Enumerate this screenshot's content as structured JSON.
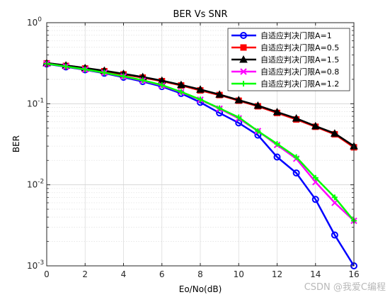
{
  "chart_data": {
    "type": "line",
    "title": "BER Vs SNR",
    "xlabel": "Eo/No(dB)",
    "ylabel": "BER",
    "xlim": [
      0,
      16
    ],
    "ylim": [
      0.001,
      1
    ],
    "yscale": "log",
    "grid": true,
    "minor_grid": true,
    "legend_position": "top-right",
    "x_ticks": [
      "0",
      "2",
      "4",
      "6",
      "8",
      "10",
      "12",
      "14",
      "16"
    ],
    "y_ticks": [
      {
        "base": "10",
        "exp": "0",
        "value": 1
      },
      {
        "base": "10",
        "exp": "-1",
        "value": 0.1
      },
      {
        "base": "10",
        "exp": "-2",
        "value": 0.01
      },
      {
        "base": "10",
        "exp": "-3",
        "value": 0.001
      }
    ],
    "x": [
      0,
      1,
      2,
      3,
      4,
      5,
      6,
      7,
      8,
      9,
      10,
      11,
      12,
      13,
      14,
      15,
      16
    ],
    "series": [
      {
        "name": "自适应判决门限A=1",
        "color": "#0000ff",
        "marker": "circle",
        "values": [
          0.31,
          0.285,
          0.262,
          0.238,
          0.212,
          0.188,
          0.163,
          0.134,
          0.104,
          0.077,
          0.058,
          0.041,
          0.022,
          0.014,
          0.0066,
          0.0024,
          0.001
        ]
      },
      {
        "name": "自适应判决门限A=0.5",
        "color": "#ff0000",
        "marker": "square",
        "values": [
          0.315,
          0.293,
          0.272,
          0.252,
          0.23,
          0.21,
          0.19,
          0.168,
          0.146,
          0.128,
          0.109,
          0.093,
          0.077,
          0.064,
          0.052,
          0.042,
          0.029
        ]
      },
      {
        "name": "自适应判决门限A=1.5",
        "color": "#000000",
        "marker": "triangle",
        "values": [
          0.318,
          0.297,
          0.276,
          0.256,
          0.234,
          0.214,
          0.193,
          0.171,
          0.15,
          0.13,
          0.111,
          0.095,
          0.079,
          0.066,
          0.053,
          0.043,
          0.03
        ]
      },
      {
        "name": "自适应判决门限A=0.8",
        "color": "#ff00ff",
        "marker": "x",
        "values": [
          0.312,
          0.288,
          0.264,
          0.241,
          0.217,
          0.193,
          0.168,
          0.139,
          0.112,
          0.087,
          0.066,
          0.046,
          0.031,
          0.021,
          0.0108,
          0.006,
          0.0036
        ]
      },
      {
        "name": "自适应判决门限A=1.2",
        "color": "#00ff00",
        "marker": "plus",
        "values": [
          0.312,
          0.288,
          0.265,
          0.242,
          0.218,
          0.195,
          0.17,
          0.14,
          0.113,
          0.088,
          0.068,
          0.046,
          0.032,
          0.022,
          0.0122,
          0.007,
          0.0036
        ]
      }
    ]
  },
  "watermark": "CSDN @我爱C编程"
}
